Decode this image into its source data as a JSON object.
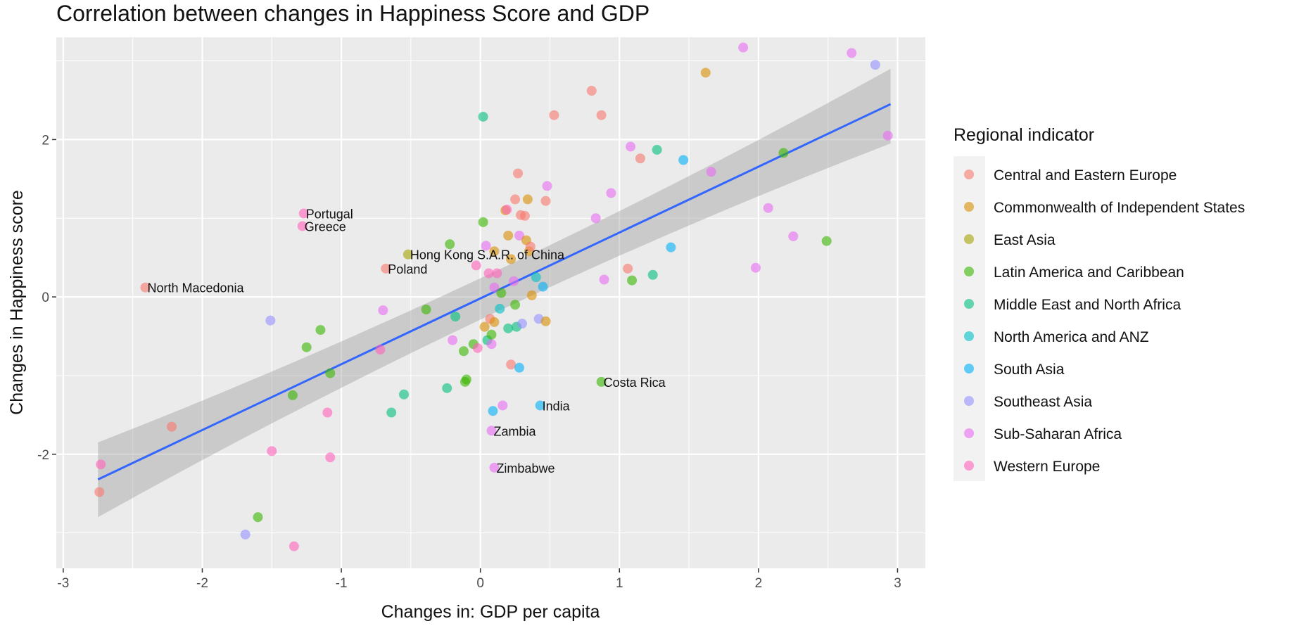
{
  "chart_data": {
    "type": "scatter",
    "title": "Correlation between changes in Happiness Score and GDP",
    "xlabel": "Changes in: GDP per capita",
    "ylabel": "Changes in Happiness score",
    "xlim": [
      -3.05,
      3.2
    ],
    "ylim": [
      -3.45,
      3.3
    ],
    "x_ticks": [
      -3,
      -2,
      -1,
      0,
      1,
      2,
      3
    ],
    "y_ticks": [
      -2,
      0,
      2
    ],
    "grid": true,
    "legend_placement": "right",
    "legend": {
      "title": "Regional indicator",
      "entries": [
        {
          "name": "Central and Eastern Europe",
          "color": "#F8766D"
        },
        {
          "name": "Commonwealth of Independent States",
          "color": "#D89000"
        },
        {
          "name": "East Asia",
          "color": "#A3A500"
        },
        {
          "name": "Latin America and Caribbean",
          "color": "#39B600"
        },
        {
          "name": "Middle East and North Africa",
          "color": "#00BF7D"
        },
        {
          "name": "North America and ANZ",
          "color": "#00BFC4"
        },
        {
          "name": "South Asia",
          "color": "#00B0F6"
        },
        {
          "name": "Southeast Asia",
          "color": "#9590FF"
        },
        {
          "name": "Sub-Saharan Africa",
          "color": "#E76BF3"
        },
        {
          "name": "Western Europe",
          "color": "#FF62BC"
        }
      ]
    },
    "trend_line": {
      "x": [
        -2.75,
        2.95
      ],
      "y": [
        -2.32,
        2.45
      ],
      "se_low": [
        -2.8,
        1.95
      ],
      "se_high": [
        -1.85,
        2.9
      ],
      "color": "#3366FF"
    },
    "points": [
      {
        "x": -2.41,
        "y": 0.12,
        "region": 0,
        "label": "North Macedonia"
      },
      {
        "x": -1.27,
        "y": 1.06,
        "region": 9,
        "label": "Portugal"
      },
      {
        "x": -1.28,
        "y": 0.9,
        "region": 9,
        "label": "Greece"
      },
      {
        "x": -0.68,
        "y": 0.36,
        "region": 0,
        "label": "Poland"
      },
      {
        "x": -0.52,
        "y": 0.54,
        "region": 2,
        "label": "Hong Kong S.A.R. of China"
      },
      {
        "x": 0.87,
        "y": -1.08,
        "region": 3,
        "label": "Costa Rica"
      },
      {
        "x": 0.43,
        "y": -1.38,
        "region": 6,
        "label": "India"
      },
      {
        "x": 0.08,
        "y": -1.7,
        "region": 8,
        "label": "Zambia"
      },
      {
        "x": 0.1,
        "y": -2.17,
        "region": 8,
        "label": "Zimbabwe"
      },
      {
        "x": -2.74,
        "y": -2.48,
        "region": 0
      },
      {
        "x": -2.73,
        "y": -2.13,
        "region": 9
      },
      {
        "x": -2.22,
        "y": -1.65,
        "region": 0
      },
      {
        "x": -1.69,
        "y": -3.02,
        "region": 7
      },
      {
        "x": -1.6,
        "y": -2.8,
        "region": 3
      },
      {
        "x": -1.51,
        "y": -0.3,
        "region": 7
      },
      {
        "x": -1.5,
        "y": -1.96,
        "region": 9
      },
      {
        "x": -1.34,
        "y": -3.17,
        "region": 9
      },
      {
        "x": -1.35,
        "y": -1.25,
        "region": 3
      },
      {
        "x": -1.25,
        "y": -0.64,
        "region": 3
      },
      {
        "x": -1.15,
        "y": -0.42,
        "region": 3
      },
      {
        "x": -1.08,
        "y": -0.97,
        "region": 3
      },
      {
        "x": -1.08,
        "y": -2.04,
        "region": 9
      },
      {
        "x": -1.1,
        "y": -1.47,
        "region": 9
      },
      {
        "x": -0.7,
        "y": -0.17,
        "region": 8
      },
      {
        "x": -0.72,
        "y": -0.67,
        "region": 9
      },
      {
        "x": -0.64,
        "y": -1.47,
        "region": 4
      },
      {
        "x": -0.55,
        "y": -1.24,
        "region": 4
      },
      {
        "x": -0.39,
        "y": -0.16,
        "region": 3
      },
      {
        "x": -0.24,
        "y": -1.16,
        "region": 4
      },
      {
        "x": -0.22,
        "y": 0.67,
        "region": 3
      },
      {
        "x": -0.18,
        "y": -0.25,
        "region": 4
      },
      {
        "x": -0.2,
        "y": -0.55,
        "region": 8
      },
      {
        "x": -0.1,
        "y": -1.05,
        "region": 3
      },
      {
        "x": -0.11,
        "y": -1.08,
        "region": 3
      },
      {
        "x": -0.12,
        "y": -0.69,
        "region": 3
      },
      {
        "x": -0.05,
        "y": -0.6,
        "region": 3
      },
      {
        "x": -0.02,
        "y": -0.65,
        "region": 9
      },
      {
        "x": -0.03,
        "y": 0.4,
        "region": 9
      },
      {
        "x": 0.02,
        "y": 0.95,
        "region": 3
      },
      {
        "x": 0.02,
        "y": 2.29,
        "region": 4
      },
      {
        "x": 0.03,
        "y": -0.38,
        "region": 1
      },
      {
        "x": 0.04,
        "y": 0.65,
        "region": 8
      },
      {
        "x": 0.05,
        "y": -0.55,
        "region": 4
      },
      {
        "x": 0.06,
        "y": 0.3,
        "region": 9
      },
      {
        "x": 0.07,
        "y": -0.28,
        "region": 0
      },
      {
        "x": 0.08,
        "y": -0.48,
        "region": 3
      },
      {
        "x": 0.08,
        "y": -0.6,
        "region": 8
      },
      {
        "x": 0.09,
        "y": -1.45,
        "region": 6
      },
      {
        "x": 0.1,
        "y": -0.32,
        "region": 1
      },
      {
        "x": 0.1,
        "y": 0.12,
        "region": 8
      },
      {
        "x": 0.1,
        "y": 0.58,
        "region": 1
      },
      {
        "x": 0.12,
        "y": 0.3,
        "region": 9
      },
      {
        "x": 0.14,
        "y": -0.15,
        "region": 5
      },
      {
        "x": 0.15,
        "y": 0.05,
        "region": 3
      },
      {
        "x": 0.16,
        "y": -1.38,
        "region": 8
      },
      {
        "x": 0.18,
        "y": 1.1,
        "region": 1
      },
      {
        "x": 0.19,
        "y": 1.11,
        "region": 9
      },
      {
        "x": 0.2,
        "y": 0.78,
        "region": 1
      },
      {
        "x": 0.2,
        "y": -0.4,
        "region": 4
      },
      {
        "x": 0.22,
        "y": -0.86,
        "region": 0
      },
      {
        "x": 0.22,
        "y": 0.48,
        "region": 1
      },
      {
        "x": 0.24,
        "y": 0.2,
        "region": 8
      },
      {
        "x": 0.25,
        "y": -0.1,
        "region": 3
      },
      {
        "x": 0.25,
        "y": 1.24,
        "region": 0
      },
      {
        "x": 0.27,
        "y": 1.57,
        "region": 0
      },
      {
        "x": 0.26,
        "y": -0.38,
        "region": 4
      },
      {
        "x": 0.28,
        "y": -0.9,
        "region": 6
      },
      {
        "x": 0.28,
        "y": 0.78,
        "region": 8
      },
      {
        "x": 0.29,
        "y": 1.04,
        "region": 0
      },
      {
        "x": 0.3,
        "y": -0.34,
        "region": 7
      },
      {
        "x": 0.32,
        "y": 1.03,
        "region": 0
      },
      {
        "x": 0.33,
        "y": 0.72,
        "region": 1
      },
      {
        "x": 0.34,
        "y": 1.24,
        "region": 1
      },
      {
        "x": 0.35,
        "y": 0.58,
        "region": 1
      },
      {
        "x": 0.36,
        "y": 0.64,
        "region": 0
      },
      {
        "x": 0.37,
        "y": 0.02,
        "region": 1
      },
      {
        "x": 0.4,
        "y": 0.25,
        "region": 5
      },
      {
        "x": 0.42,
        "y": -0.28,
        "region": 7
      },
      {
        "x": 0.45,
        "y": 0.13,
        "region": 6
      },
      {
        "x": 0.47,
        "y": -0.31,
        "region": 1
      },
      {
        "x": 0.47,
        "y": 1.22,
        "region": 0
      },
      {
        "x": 0.48,
        "y": 1.41,
        "region": 8
      },
      {
        "x": 0.53,
        "y": 2.31,
        "region": 0
      },
      {
        "x": 0.8,
        "y": 2.62,
        "region": 0
      },
      {
        "x": 0.83,
        "y": 1.0,
        "region": 8
      },
      {
        "x": 0.87,
        "y": 2.31,
        "region": 0
      },
      {
        "x": 0.89,
        "y": 0.22,
        "region": 8
      },
      {
        "x": 0.94,
        "y": 1.32,
        "region": 8
      },
      {
        "x": 1.06,
        "y": 0.36,
        "region": 0
      },
      {
        "x": 1.08,
        "y": 1.91,
        "region": 8
      },
      {
        "x": 1.09,
        "y": 0.21,
        "region": 3
      },
      {
        "x": 1.15,
        "y": 1.76,
        "region": 0
      },
      {
        "x": 1.24,
        "y": 0.28,
        "region": 4
      },
      {
        "x": 1.27,
        "y": 1.87,
        "region": 4
      },
      {
        "x": 1.37,
        "y": 0.63,
        "region": 6
      },
      {
        "x": 1.46,
        "y": 1.74,
        "region": 6
      },
      {
        "x": 1.62,
        "y": 2.85,
        "region": 1
      },
      {
        "x": 1.66,
        "y": 1.59,
        "region": 8
      },
      {
        "x": 1.89,
        "y": 3.17,
        "region": 8
      },
      {
        "x": 1.98,
        "y": 0.37,
        "region": 8
      },
      {
        "x": 2.07,
        "y": 1.13,
        "region": 8
      },
      {
        "x": 2.18,
        "y": 1.83,
        "region": 3
      },
      {
        "x": 2.25,
        "y": 0.77,
        "region": 8
      },
      {
        "x": 2.49,
        "y": 0.71,
        "region": 3
      },
      {
        "x": 2.67,
        "y": 3.1,
        "region": 8
      },
      {
        "x": 2.84,
        "y": 2.95,
        "region": 7
      },
      {
        "x": 2.93,
        "y": 2.05,
        "region": 8
      }
    ]
  }
}
